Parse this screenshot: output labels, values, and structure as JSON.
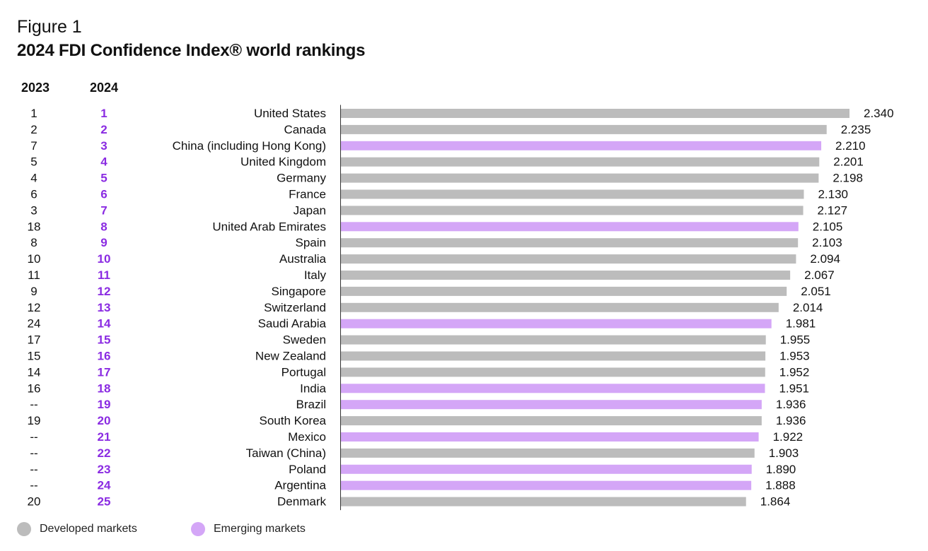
{
  "figure_label": "Figure 1",
  "title": "2024 FDI Confidence Index® world rankings",
  "colors": {
    "developed": "#bcbcbc",
    "emerging": "#d4a6f7",
    "rank2024_text": "#8a2be2"
  },
  "legend": [
    {
      "label": "Developed markets",
      "color": "#bcbcbc"
    },
    {
      "label": "Emerging markets",
      "color": "#d4a6f7"
    }
  ],
  "chart_data": {
    "type": "bar",
    "orientation": "horizontal",
    "title": "2024 FDI Confidence Index® world rankings",
    "column_headers": {
      "rank_2023": "2023",
      "rank_2024": "2024"
    },
    "categories": [
      "United States",
      "Canada",
      "China (including Hong Kong)",
      "United Kingdom",
      "Germany",
      "France",
      "Japan",
      "United Arab Emirates",
      "Spain",
      "Australia",
      "Italy",
      "Singapore",
      "Switzerland",
      "Saudi Arabia",
      "Sweden",
      "New Zealand",
      "Portugal",
      "India",
      "Brazil",
      "South Korea",
      "Mexico",
      "Taiwan (China)",
      "Poland",
      "Argentina",
      "Denmark"
    ],
    "values": [
      2.34,
      2.235,
      2.21,
      2.201,
      2.198,
      2.13,
      2.127,
      2.105,
      2.103,
      2.094,
      2.067,
      2.051,
      2.014,
      1.981,
      1.955,
      1.953,
      1.952,
      1.951,
      1.936,
      1.936,
      1.922,
      1.903,
      1.89,
      1.888,
      1.864
    ],
    "value_labels": [
      "2.340",
      "2.235",
      "2.210",
      "2.201",
      "2.198",
      "2.130",
      "2.127",
      "2.105",
      "2.103",
      "2.094",
      "2.067",
      "2.051",
      "2.014",
      "1.981",
      "1.955",
      "1.953",
      "1.952",
      "1.951",
      "1.936",
      "1.936",
      "1.922",
      "1.903",
      "1.890",
      "1.888",
      "1.864"
    ],
    "rank_2023": [
      "1",
      "2",
      "7",
      "5",
      "4",
      "6",
      "3",
      "18",
      "8",
      "10",
      "11",
      "9",
      "12",
      "24",
      "17",
      "15",
      "14",
      "16",
      "--",
      "19",
      "--",
      "--",
      "--",
      "--",
      "20"
    ],
    "rank_2024": [
      "1",
      "2",
      "3",
      "4",
      "5",
      "6",
      "7",
      "8",
      "9",
      "10",
      "11",
      "12",
      "13",
      "14",
      "15",
      "16",
      "17",
      "18",
      "19",
      "20",
      "21",
      "22",
      "23",
      "24",
      "25"
    ],
    "market_type": [
      "developed",
      "developed",
      "emerging",
      "developed",
      "developed",
      "developed",
      "developed",
      "emerging",
      "developed",
      "developed",
      "developed",
      "developed",
      "developed",
      "emerging",
      "developed",
      "developed",
      "developed",
      "emerging",
      "emerging",
      "developed",
      "emerging",
      "developed",
      "emerging",
      "emerging",
      "developed"
    ],
    "xlim": [
      0,
      2.34
    ],
    "grid": false,
    "legend_position": "bottom-left"
  }
}
